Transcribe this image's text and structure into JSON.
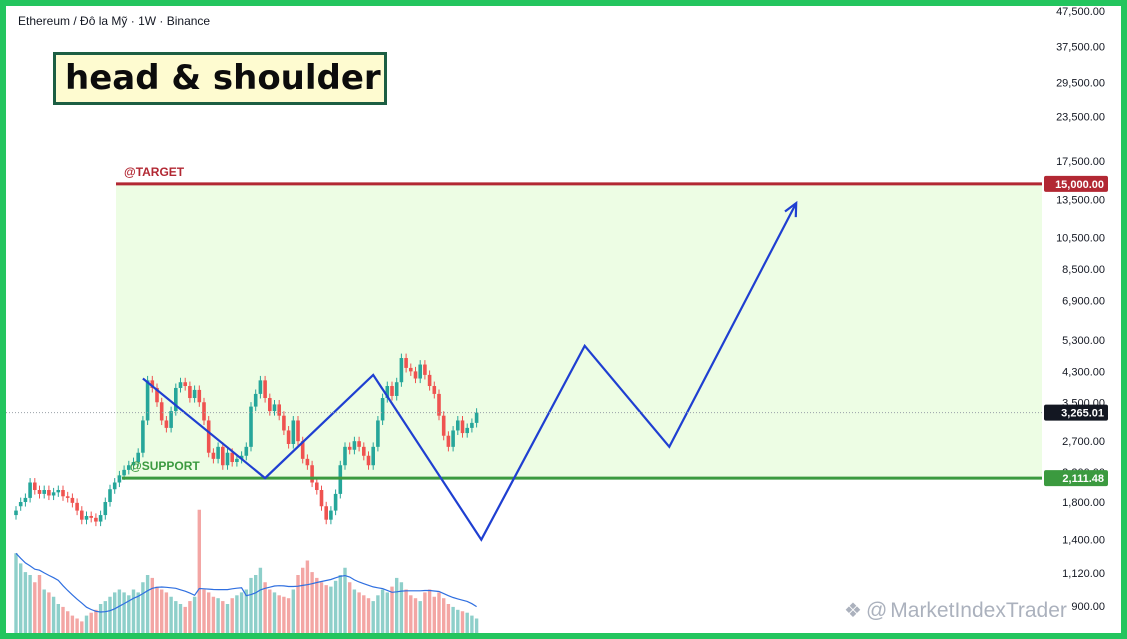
{
  "header": {
    "symbol": "Ethereum",
    "currency": "Đô la Mỹ",
    "interval": "1W",
    "exchange": "Binance",
    "separator": " / ",
    "dot": " · "
  },
  "annotation": {
    "title": "head & shoulder"
  },
  "watermark": {
    "at": "@",
    "text": "MarketIndexTrader",
    "icon": "diamond-logo-icon"
  },
  "colors": {
    "background": "#ffffff",
    "frame": "#23c55e",
    "up_candle": "#26a69a",
    "down_candle": "#ef5350",
    "target_line": "#b22833",
    "support_line": "#3b9a3f",
    "zone_fill": "#edfde4",
    "pattern_line": "#1f3fd1",
    "moving_average": "#2f6fe0",
    "volume_up": "#8ecfca",
    "volume_down": "#f3a6a4"
  },
  "chart_data": {
    "type": "candlestick",
    "scale": "log",
    "price_axis_ticks": [
      "47,500.00",
      "37,500.00",
      "29,500.00",
      "23,500.00",
      "17,500.00",
      "13,500.00",
      "10,500.00",
      "8,500.00",
      "6,900.00",
      "5,300.00",
      "4,300.00",
      "3,500.00",
      "2,700.00",
      "2,200.00",
      "1,800.00",
      "1,400.00",
      "1,120.00",
      "900.00"
    ],
    "price_axis_values": [
      47500,
      37500,
      29500,
      23500,
      17500,
      13500,
      10500,
      8500,
      6900,
      5300,
      4300,
      3500,
      2700,
      2200,
      1800,
      1400,
      1120,
      900
    ],
    "ylim": [
      850,
      49000
    ],
    "current_price": {
      "label": "3,265.01",
      "value": 3265.01
    },
    "levels": [
      {
        "name": "@TARGET",
        "value": 15000,
        "price_label": "15,000.00"
      },
      {
        "name": "@SUPPORT",
        "value": 2111.48,
        "price_label": "2,111.48"
      }
    ],
    "pattern_path": [
      [
        27,
        4100
      ],
      [
        53,
        2111.48
      ],
      [
        76,
        4200
      ],
      [
        99,
        1400
      ],
      [
        121,
        5100
      ],
      [
        139,
        2600
      ],
      [
        166,
        13200
      ]
    ],
    "candles": [
      [
        1650,
        1700
      ],
      [
        1750,
        1800
      ],
      [
        1800,
        1850
      ],
      [
        1850,
        2050
      ],
      [
        2050,
        1950
      ],
      [
        1950,
        1900
      ],
      [
        1900,
        1950
      ],
      [
        1950,
        1880
      ],
      [
        1880,
        1920
      ],
      [
        1920,
        1950
      ],
      [
        1950,
        1870
      ],
      [
        1870,
        1850
      ],
      [
        1850,
        1790
      ],
      [
        1790,
        1700
      ],
      [
        1700,
        1600
      ],
      [
        1600,
        1640
      ],
      [
        1640,
        1620
      ],
      [
        1620,
        1580
      ],
      [
        1580,
        1650
      ],
      [
        1650,
        1800
      ],
      [
        1800,
        1960
      ],
      [
        1960,
        2050
      ],
      [
        2050,
        2150
      ],
      [
        2150,
        2230
      ],
      [
        2230,
        2300
      ],
      [
        2300,
        2350
      ],
      [
        2350,
        2500
      ],
      [
        2500,
        3100
      ],
      [
        3100,
        4050
      ],
      [
        4050,
        3850
      ],
      [
        3850,
        3500
      ],
      [
        3500,
        3100
      ],
      [
        3100,
        2950
      ],
      [
        2950,
        3300
      ],
      [
        3300,
        3850
      ],
      [
        3850,
        4000
      ],
      [
        4000,
        3900
      ],
      [
        3900,
        3600
      ],
      [
        3600,
        3800
      ],
      [
        3800,
        3500
      ],
      [
        3500,
        3100
      ],
      [
        3100,
        2500
      ],
      [
        2500,
        2400
      ],
      [
        2400,
        2600
      ],
      [
        2600,
        2300
      ],
      [
        2300,
        2500
      ],
      [
        2500,
        2350
      ],
      [
        2350,
        2400
      ],
      [
        2400,
        2450
      ],
      [
        2450,
        2600
      ],
      [
        2600,
        3400
      ],
      [
        3400,
        3700
      ],
      [
        3700,
        4050
      ],
      [
        4050,
        3600
      ],
      [
        3600,
        3300
      ],
      [
        3300,
        3450
      ],
      [
        3450,
        3200
      ],
      [
        3200,
        2900
      ],
      [
        2900,
        2650
      ],
      [
        2650,
        3100
      ],
      [
        3100,
        2700
      ],
      [
        2700,
        2400
      ],
      [
        2400,
        2300
      ],
      [
        2300,
        2050
      ],
      [
        2050,
        1950
      ],
      [
        1950,
        1750
      ],
      [
        1750,
        1600
      ],
      [
        1600,
        1700
      ],
      [
        1700,
        1900
      ],
      [
        1900,
        2300
      ],
      [
        2300,
        2600
      ],
      [
        2600,
        2550
      ],
      [
        2550,
        2700
      ],
      [
        2700,
        2600
      ],
      [
        2600,
        2450
      ],
      [
        2450,
        2300
      ],
      [
        2300,
        2600
      ],
      [
        2600,
        3100
      ],
      [
        3100,
        3600
      ],
      [
        3600,
        3900
      ],
      [
        3900,
        3650
      ],
      [
        3650,
        4000
      ],
      [
        4000,
        4700
      ],
      [
        4700,
        4400
      ],
      [
        4400,
        4300
      ],
      [
        4300,
        4100
      ],
      [
        4100,
        4500
      ],
      [
        4500,
        4200
      ],
      [
        4200,
        3900
      ],
      [
        3900,
        3700
      ],
      [
        3700,
        3200
      ],
      [
        3200,
        2800
      ],
      [
        2800,
        2600
      ],
      [
        2600,
        2900
      ],
      [
        2900,
        3100
      ],
      [
        3100,
        2850
      ],
      [
        2850,
        2950
      ],
      [
        2950,
        3050
      ],
      [
        3050,
        3265
      ]
    ],
    "volume": [
      55,
      48,
      42,
      40,
      35,
      40,
      30,
      28,
      25,
      20,
      18,
      15,
      12,
      10,
      8,
      12,
      14,
      16,
      20,
      22,
      25,
      28,
      30,
      28,
      26,
      30,
      28,
      35,
      40,
      38,
      32,
      30,
      28,
      25,
      22,
      20,
      18,
      22,
      25,
      85,
      30,
      28,
      25,
      24,
      22,
      20,
      24,
      26,
      28,
      30,
      38,
      40,
      45,
      35,
      30,
      28,
      26,
      25,
      24,
      30,
      40,
      45,
      50,
      42,
      38,
      35,
      33,
      32,
      36,
      40,
      45,
      35,
      30,
      28,
      26,
      24,
      22,
      26,
      30,
      28,
      32,
      38,
      35,
      30,
      26,
      24,
      22,
      28,
      30,
      25,
      28,
      24,
      20,
      18,
      16,
      15,
      14,
      12,
      10
    ]
  }
}
